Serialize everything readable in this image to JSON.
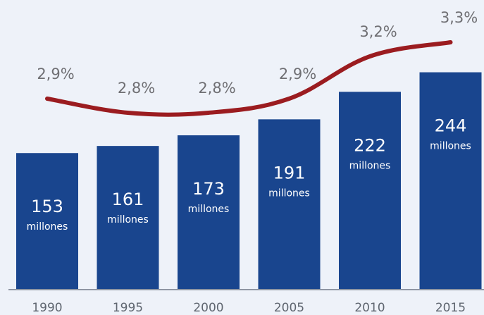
{
  "chart_data": {
    "type": "bar",
    "categories": [
      "1990",
      "1995",
      "2000",
      "2005",
      "2010",
      "2015"
    ],
    "series": [
      {
        "values": [
          153,
          161,
          173,
          191,
          222,
          244
        ],
        "value_labels": [
          "153",
          "161",
          "173",
          "191",
          "222",
          "244"
        ],
        "unit_label": "millones",
        "color": "#19458e"
      },
      {
        "type": "line",
        "values": [
          2.9,
          2.8,
          2.8,
          2.9,
          3.2,
          3.3
        ],
        "value_labels": [
          "2,9%",
          "2,8%",
          "2,8%",
          "2,9%",
          "3,2%",
          "3,3%"
        ],
        "color": "#9b1c20"
      }
    ],
    "title": "",
    "xlabel": "",
    "ylabel": "",
    "grid": false,
    "legend": "none"
  }
}
